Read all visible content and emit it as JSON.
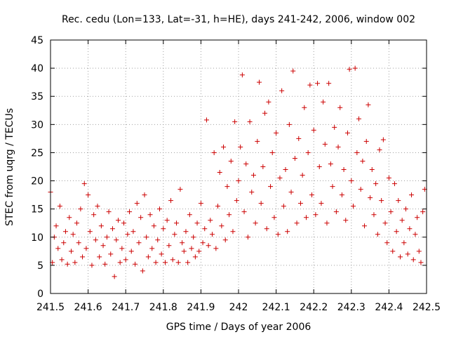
{
  "chart_data": {
    "type": "scatter",
    "title": "Rec. cedu (Lon=133, Lat=-31, h=HE), days 241-242, 2006, window 002",
    "xlabel": "GPS time / Days of year 2006",
    "ylabel": "STEC from uqrg / TECUs",
    "xlim": [
      241.5,
      242.5
    ],
    "ylim": [
      0,
      45
    ],
    "xticks": [
      "241.5",
      "241.6",
      "241.7",
      "241.8",
      "241.9",
      "242",
      "242.1",
      "242.2",
      "242.3",
      "242.4",
      "242.5"
    ],
    "yticks": [
      "0",
      "5",
      "10",
      "15",
      "20",
      "25",
      "30",
      "35",
      "40",
      "45"
    ],
    "grid": true,
    "marker": "plus",
    "color": "#cc0000",
    "points": [
      [
        241.5,
        18.0
      ],
      [
        241.505,
        5.5
      ],
      [
        241.51,
        10.0
      ],
      [
        241.515,
        12.0
      ],
      [
        241.52,
        8.0
      ],
      [
        241.525,
        15.5
      ],
      [
        241.53,
        6.0
      ],
      [
        241.535,
        9.0
      ],
      [
        241.54,
        11.0
      ],
      [
        241.545,
        5.2
      ],
      [
        241.55,
        13.5
      ],
      [
        241.555,
        7.5
      ],
      [
        241.56,
        10.5
      ],
      [
        241.565,
        5.5
      ],
      [
        241.57,
        12.5
      ],
      [
        241.575,
        9.0
      ],
      [
        241.58,
        15.0
      ],
      [
        241.585,
        6.5
      ],
      [
        241.59,
        19.5
      ],
      [
        241.595,
        8.0
      ],
      [
        241.6,
        17.5
      ],
      [
        241.605,
        11.0
      ],
      [
        241.61,
        5.0
      ],
      [
        241.615,
        14.0
      ],
      [
        241.62,
        9.5
      ],
      [
        241.625,
        15.5
      ],
      [
        241.63,
        6.5
      ],
      [
        241.635,
        12.0
      ],
      [
        241.64,
        8.5
      ],
      [
        241.645,
        5.2
      ],
      [
        241.65,
        10.0
      ],
      [
        241.655,
        14.5
      ],
      [
        241.66,
        7.0
      ],
      [
        241.665,
        11.5
      ],
      [
        241.67,
        3.0
      ],
      [
        241.675,
        9.5
      ],
      [
        241.68,
        13.0
      ],
      [
        241.685,
        5.5
      ],
      [
        241.69,
        8.0
      ],
      [
        241.695,
        12.5
      ],
      [
        241.7,
        6.0
      ],
      [
        241.705,
        10.5
      ],
      [
        241.71,
        14.5
      ],
      [
        241.715,
        7.5
      ],
      [
        241.72,
        11.0
      ],
      [
        241.725,
        5.2
      ],
      [
        241.73,
        16.0
      ],
      [
        241.735,
        9.0
      ],
      [
        241.74,
        13.5
      ],
      [
        241.745,
        4.0
      ],
      [
        241.75,
        17.5
      ],
      [
        241.755,
        10.0
      ],
      [
        241.76,
        6.5
      ],
      [
        241.765,
        14.0
      ],
      [
        241.77,
        8.0
      ],
      [
        241.775,
        12.0
      ],
      [
        241.78,
        5.5
      ],
      [
        241.785,
        9.5
      ],
      [
        241.79,
        15.0
      ],
      [
        241.795,
        7.0
      ],
      [
        241.8,
        11.5
      ],
      [
        241.805,
        5.5
      ],
      [
        241.81,
        13.0
      ],
      [
        241.815,
        8.5
      ],
      [
        241.82,
        16.5
      ],
      [
        241.825,
        6.0
      ],
      [
        241.83,
        10.5
      ],
      [
        241.835,
        12.5
      ],
      [
        241.84,
        5.5
      ],
      [
        241.845,
        18.5
      ],
      [
        241.85,
        9.0
      ],
      [
        241.855,
        7.5
      ],
      [
        241.86,
        11.0
      ],
      [
        241.865,
        5.5
      ],
      [
        241.87,
        14.0
      ],
      [
        241.875,
        8.0
      ],
      [
        241.88,
        10.0
      ],
      [
        241.885,
        6.5
      ],
      [
        241.89,
        12.5
      ],
      [
        241.895,
        7.5
      ],
      [
        241.9,
        16.0
      ],
      [
        241.905,
        9.0
      ],
      [
        241.91,
        11.5
      ],
      [
        241.915,
        30.8
      ],
      [
        241.92,
        8.5
      ],
      [
        241.925,
        13.0
      ],
      [
        241.93,
        10.5
      ],
      [
        241.935,
        25.0
      ],
      [
        241.94,
        8.0
      ],
      [
        241.945,
        15.5
      ],
      [
        241.95,
        21.5
      ],
      [
        241.955,
        12.0
      ],
      [
        241.96,
        26.0
      ],
      [
        241.965,
        9.5
      ],
      [
        241.97,
        19.0
      ],
      [
        241.975,
        14.0
      ],
      [
        241.98,
        23.5
      ],
      [
        241.985,
        11.0
      ],
      [
        241.99,
        30.5
      ],
      [
        241.995,
        16.5
      ],
      [
        242.0,
        20.0
      ],
      [
        242.005,
        26.0
      ],
      [
        242.01,
        38.8
      ],
      [
        242.015,
        14.5
      ],
      [
        242.02,
        23.0
      ],
      [
        242.025,
        10.0
      ],
      [
        242.03,
        30.5
      ],
      [
        242.035,
        18.0
      ],
      [
        242.04,
        21.0
      ],
      [
        242.045,
        12.5
      ],
      [
        242.05,
        27.0
      ],
      [
        242.055,
        37.5
      ],
      [
        242.06,
        16.0
      ],
      [
        242.065,
        22.5
      ],
      [
        242.07,
        32.0
      ],
      [
        242.075,
        11.5
      ],
      [
        242.08,
        34.0
      ],
      [
        242.085,
        19.0
      ],
      [
        242.09,
        25.0
      ],
      [
        242.095,
        13.5
      ],
      [
        242.1,
        28.5
      ],
      [
        242.105,
        10.5
      ],
      [
        242.11,
        20.5
      ],
      [
        242.115,
        36.0
      ],
      [
        242.12,
        15.5
      ],
      [
        242.125,
        22.0
      ],
      [
        242.13,
        11.0
      ],
      [
        242.135,
        30.0
      ],
      [
        242.14,
        18.0
      ],
      [
        242.145,
        39.5
      ],
      [
        242.15,
        24.0
      ],
      [
        242.155,
        12.5
      ],
      [
        242.16,
        27.5
      ],
      [
        242.165,
        16.0
      ],
      [
        242.17,
        21.0
      ],
      [
        242.175,
        33.0
      ],
      [
        242.18,
        13.5
      ],
      [
        242.185,
        25.0
      ],
      [
        242.19,
        37.0
      ],
      [
        242.195,
        17.5
      ],
      [
        242.2,
        29.0
      ],
      [
        242.205,
        14.0
      ],
      [
        242.21,
        37.3
      ],
      [
        242.215,
        22.5
      ],
      [
        242.22,
        16.0
      ],
      [
        242.225,
        34.0
      ],
      [
        242.23,
        26.5
      ],
      [
        242.235,
        12.5
      ],
      [
        242.24,
        37.3
      ],
      [
        242.245,
        23.0
      ],
      [
        242.25,
        19.0
      ],
      [
        242.255,
        29.5
      ],
      [
        242.26,
        14.5
      ],
      [
        242.265,
        26.0
      ],
      [
        242.27,
        33.0
      ],
      [
        242.275,
        17.5
      ],
      [
        242.28,
        22.0
      ],
      [
        242.285,
        13.0
      ],
      [
        242.29,
        28.5
      ],
      [
        242.295,
        39.8
      ],
      [
        242.3,
        20.0
      ],
      [
        242.305,
        15.5
      ],
      [
        242.31,
        40.0
      ],
      [
        242.315,
        25.0
      ],
      [
        242.32,
        31.0
      ],
      [
        242.325,
        18.5
      ],
      [
        242.33,
        23.5
      ],
      [
        242.335,
        12.0
      ],
      [
        242.34,
        27.0
      ],
      [
        242.345,
        33.5
      ],
      [
        242.35,
        17.0
      ],
      [
        242.355,
        22.0
      ],
      [
        242.36,
        14.0
      ],
      [
        242.365,
        19.5
      ],
      [
        242.37,
        10.5
      ],
      [
        242.375,
        25.5
      ],
      [
        242.38,
        16.5
      ],
      [
        242.385,
        27.3
      ],
      [
        242.39,
        12.5
      ],
      [
        242.395,
        9.0
      ],
      [
        242.4,
        20.5
      ],
      [
        242.405,
        14.5
      ],
      [
        242.41,
        7.5
      ],
      [
        242.415,
        19.5
      ],
      [
        242.42,
        11.0
      ],
      [
        242.425,
        16.5
      ],
      [
        242.43,
        6.5
      ],
      [
        242.435,
        13.0
      ],
      [
        242.44,
        9.0
      ],
      [
        242.445,
        15.0
      ],
      [
        242.45,
        7.0
      ],
      [
        242.455,
        11.5
      ],
      [
        242.46,
        17.5
      ],
      [
        242.465,
        6.0
      ],
      [
        242.47,
        10.5
      ],
      [
        242.475,
        13.5
      ],
      [
        242.48,
        7.5
      ],
      [
        242.485,
        5.5
      ],
      [
        242.49,
        14.5
      ],
      [
        242.495,
        18.5
      ]
    ]
  }
}
